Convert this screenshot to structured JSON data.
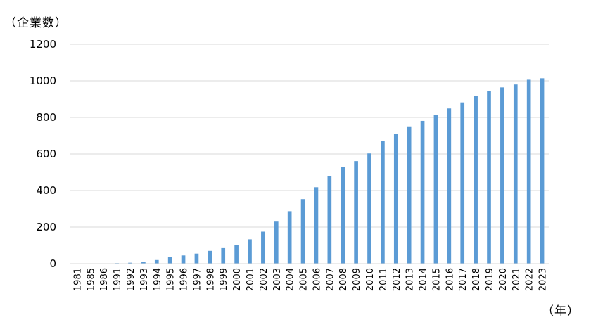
{
  "chart_data": {
    "type": "bar",
    "ylabel": "（企業数）",
    "xlabel": "（年）",
    "ylim": [
      0,
      1200
    ],
    "yticks": [
      0,
      200,
      400,
      600,
      800,
      1000,
      1200
    ],
    "grid": true,
    "categories": [
      "1981",
      "1985",
      "1986",
      "1991",
      "1992",
      "1993",
      "1994",
      "1995",
      "1996",
      "1997",
      "1998",
      "1999",
      "2000",
      "2001",
      "2002",
      "2003",
      "2004",
      "2005",
      "2006",
      "2007",
      "2008",
      "2009",
      "2010",
      "2011",
      "2012",
      "2013",
      "2014",
      "2015",
      "2016",
      "2017",
      "2018",
      "2019",
      "2020",
      "2021",
      "2022",
      "2023"
    ],
    "values": [
      1,
      1,
      1,
      3,
      5,
      9,
      20,
      35,
      45,
      55,
      70,
      85,
      103,
      133,
      175,
      230,
      287,
      353,
      418,
      477,
      528,
      561,
      603,
      671,
      710,
      751,
      781,
      813,
      849,
      882,
      916,
      944,
      964,
      980,
      1006,
      1014
    ],
    "bar_color": "#5b9bd5",
    "grid_color": "#d9d9d9"
  }
}
